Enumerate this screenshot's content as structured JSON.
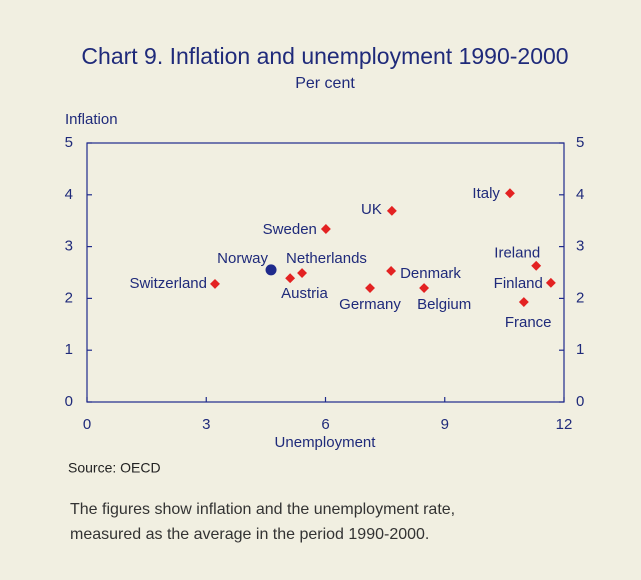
{
  "chart_data": {
    "type": "scatter",
    "title": "Chart 9. Inflation and unemployment 1990-2000",
    "subtitle": "Per cent",
    "ylabel": "Inflation",
    "xlabel": "Unemployment",
    "source": "Source: OECD",
    "note": [
      "The figures show inflation and the unemployment  rate,",
      "measured as the average in the period 1990-2000."
    ],
    "labels": [
      "Switzerland",
      "Norway",
      "Austria",
      "Netherlands",
      "Sweden",
      "Germany",
      "UK",
      "Denmark",
      "Belgium",
      "Italy",
      "Ireland",
      "Finland",
      "France"
    ],
    "x": [
      3.22,
      4.63,
      5.11,
      5.41,
      6.01,
      7.12,
      7.67,
      7.65,
      8.48,
      10.64,
      11.3,
      11.67,
      10.99
    ],
    "y": [
      2.28,
      2.55,
      2.39,
      2.49,
      3.34,
      2.2,
      3.69,
      2.53,
      2.2,
      4.03,
      2.63,
      2.3,
      1.93
    ],
    "colors": [
      "#e32222",
      "#1f2a8c",
      "#e32222",
      "#e32222",
      "#e32222",
      "#e32222",
      "#e32222",
      "#e32222",
      "#e32222",
      "#e32222",
      "#e32222",
      "#e32222",
      "#e32222"
    ],
    "xlim": [
      0,
      12
    ],
    "xticks": [
      0,
      3,
      6,
      9,
      12
    ],
    "ylim": [
      0,
      5
    ],
    "yticks": [
      0,
      1,
      2,
      3,
      4,
      5
    ],
    "y2lim": [
      0,
      5
    ],
    "y2ticks": [
      0,
      1,
      2,
      3,
      4,
      5
    ],
    "grid": false
  }
}
